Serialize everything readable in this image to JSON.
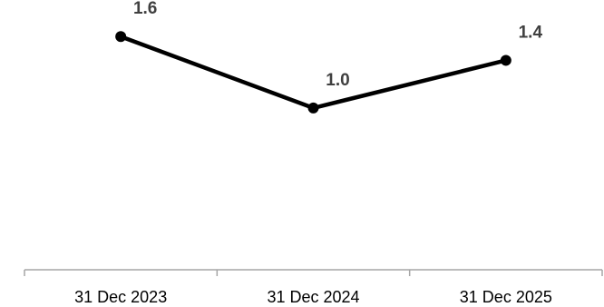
{
  "chart_data": {
    "type": "line",
    "categories": [
      "31 Dec 2023",
      "31 Dec 2024",
      "31 Dec 2025"
    ],
    "series": [
      {
        "values": [
          1.6,
          1.0,
          1.4
        ],
        "data_labels": [
          "1.6",
          "1.0",
          "1.4"
        ]
      }
    ],
    "title": "",
    "xlabel": "",
    "ylabel": "",
    "ylim": [
      0.0,
      1.8
    ],
    "grid": false,
    "legend": "none",
    "colors": {
      "line": "#000000",
      "marker": "#000000",
      "data_label": "#404040",
      "axis": "#a6a6a6"
    }
  }
}
